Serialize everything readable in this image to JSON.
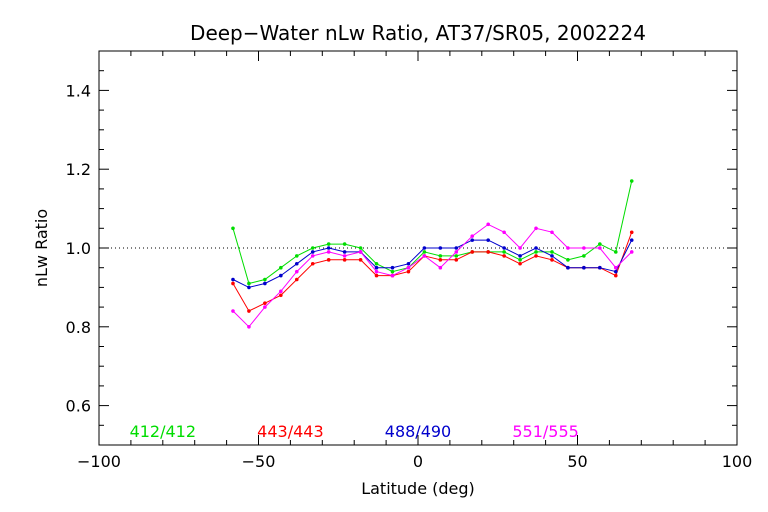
{
  "chart_data": {
    "type": "line",
    "title": "Deep−Water nLw Ratio, AT37/SR05, 2002224",
    "xlabel": "Latitude (deg)",
    "ylabel": "nLw Ratio",
    "xlim": [
      -100,
      100
    ],
    "ylim": [
      0.5,
      1.5
    ],
    "xticks": [
      "−100",
      "−50",
      "0",
      "50",
      "100"
    ],
    "yticks": [
      "0.6",
      "0.8",
      "1.0",
      "1.2",
      "1.4"
    ],
    "reference_line": 1.0,
    "x": [
      -58,
      -53,
      -48,
      -43,
      -38,
      -33,
      -28,
      -23,
      -18,
      -13,
      -8,
      -3,
      2,
      7,
      12,
      17,
      22,
      27,
      32,
      37,
      42,
      47,
      52,
      57,
      62,
      67
    ],
    "series": [
      {
        "name": "412/412",
        "color": "#00dd00",
        "values": [
          1.05,
          0.91,
          0.92,
          0.95,
          0.98,
          1.0,
          1.01,
          1.01,
          1.0,
          0.96,
          0.94,
          0.95,
          0.99,
          0.98,
          0.98,
          0.99,
          0.99,
          0.99,
          0.97,
          0.99,
          0.99,
          0.97,
          0.98,
          1.01,
          0.99,
          1.17
        ]
      },
      {
        "name": "443/443",
        "color": "#ff0000",
        "values": [
          0.91,
          0.84,
          0.86,
          0.88,
          0.92,
          0.96,
          0.97,
          0.97,
          0.97,
          0.93,
          0.93,
          0.94,
          0.98,
          0.97,
          0.97,
          0.99,
          0.99,
          0.98,
          0.96,
          0.98,
          0.97,
          0.95,
          0.95,
          0.95,
          0.93,
          1.04
        ]
      },
      {
        "name": "488/490",
        "color": "#0000cc",
        "values": [
          0.92,
          0.9,
          0.91,
          0.93,
          0.96,
          0.99,
          1.0,
          0.99,
          0.99,
          0.95,
          0.95,
          0.96,
          1.0,
          1.0,
          1.0,
          1.02,
          1.02,
          1.0,
          0.98,
          1.0,
          0.98,
          0.95,
          0.95,
          0.95,
          0.94,
          1.02
        ]
      },
      {
        "name": "551/555",
        "color": "#ff00ff",
        "values": [
          0.84,
          0.8,
          0.85,
          0.89,
          0.94,
          0.98,
          0.99,
          0.98,
          0.99,
          0.94,
          0.93,
          0.95,
          0.98,
          0.95,
          0.99,
          1.03,
          1.06,
          1.04,
          1.0,
          1.05,
          1.04,
          1.0,
          1.0,
          1.0,
          0.95,
          0.99
        ]
      }
    ]
  }
}
